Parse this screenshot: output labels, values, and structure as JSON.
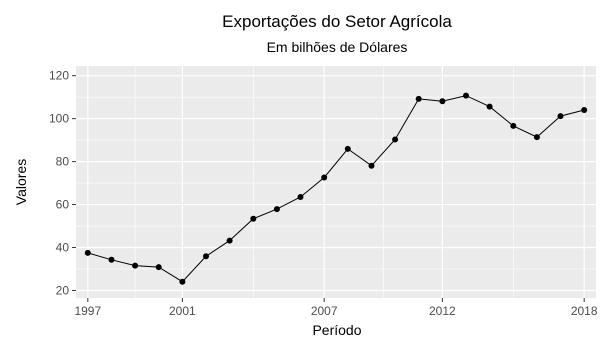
{
  "chart_data": {
    "type": "line",
    "title": "Exportações do Setor Agrícola",
    "subtitle": "Em bilhões de Dólares",
    "xlabel": "Período",
    "ylabel": "Valores",
    "x": [
      1997,
      1998,
      1999,
      2000,
      2001,
      2002,
      2003,
      2004,
      2005,
      2006,
      2007,
      2008,
      2009,
      2010,
      2011,
      2012,
      2013,
      2014,
      2015,
      2016,
      2017,
      2018
    ],
    "series": [
      {
        "values": [
          37.5,
          34.3,
          31.6,
          30.9,
          24.1,
          35.9,
          43.2,
          53.4,
          57.9,
          63.5,
          72.6,
          85.9,
          78.1,
          90.3,
          109.2,
          108.1,
          110.7,
          105.6,
          96.6,
          91.4,
          101.2,
          104.0
        ]
      }
    ],
    "xlim": [
      1996.5,
      2018.5
    ],
    "ylim": [
      16.5,
      124.5
    ],
    "x_ticks": [
      1997,
      2001,
      2007,
      2012,
      2018
    ],
    "y_ticks": [
      20,
      40,
      60,
      80,
      100,
      120
    ],
    "grid": true,
    "colors": {
      "panel": "#ebebeb",
      "grid": "#ffffff",
      "line": "#000000",
      "point": "#000000"
    }
  }
}
